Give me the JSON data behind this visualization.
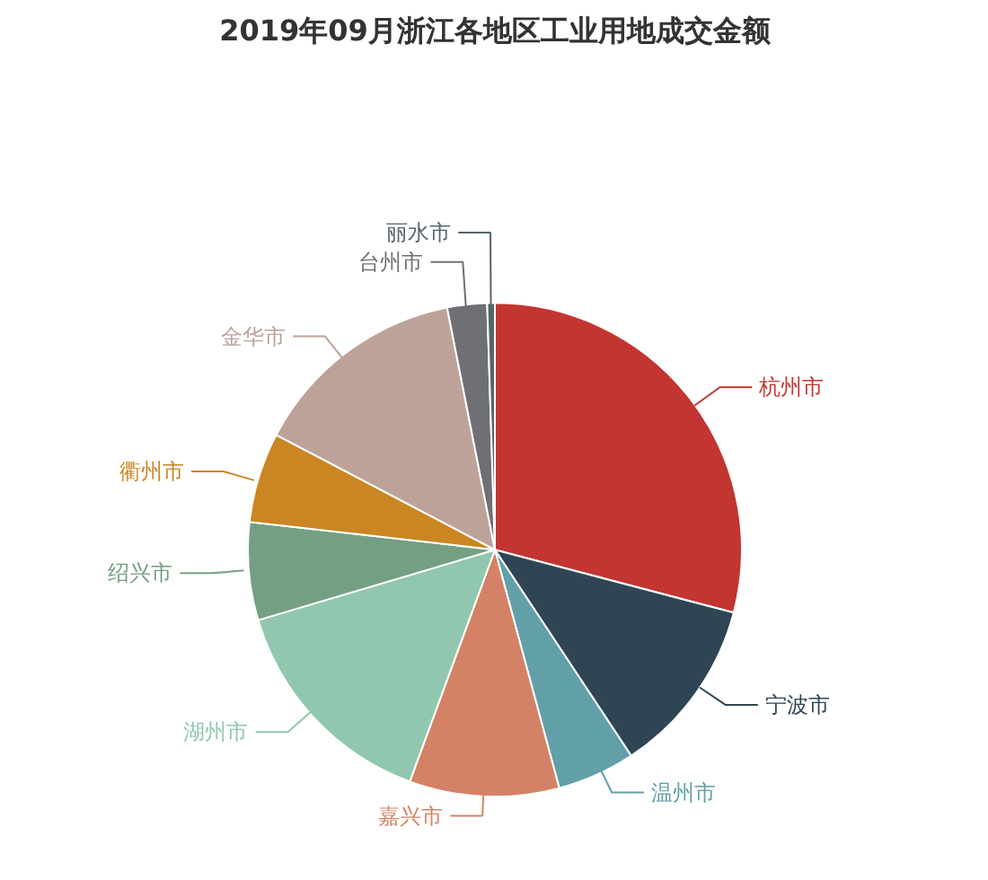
{
  "chart_data": {
    "type": "pie",
    "title": "2019年09月浙江各地区工业用地成交金额",
    "categories": [
      "杭州市",
      "宁波市",
      "温州市",
      "嘉兴市",
      "湖州市",
      "绍兴市",
      "衢州市",
      "金华市",
      "台州市",
      "丽水市"
    ],
    "values": [
      29.1,
      11.6,
      5.1,
      9.8,
      14.8,
      6.4,
      5.9,
      14.2,
      2.6,
      0.5
    ],
    "colors": [
      "#c23531",
      "#2f4554",
      "#61a0a8",
      "#d48265",
      "#91c7ae",
      "#749f83",
      "#ca8622",
      "#bda29a",
      "#6e7074",
      "#546570"
    ]
  }
}
